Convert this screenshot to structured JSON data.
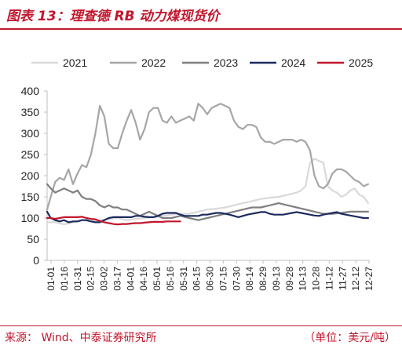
{
  "header": {
    "title": "图表 13：理查德 RB 动力煤现货价"
  },
  "footer": {
    "source": "来源：  Wind、中泰证券研究所",
    "unit": "（单位：美元/吨）"
  },
  "colors": {
    "accent": "#c0172d"
  },
  "chart_data": {
    "type": "line",
    "title": "",
    "xlabel": "",
    "ylabel": "",
    "ylim": [
      0,
      400
    ],
    "yticks": [
      0,
      50,
      100,
      150,
      200,
      250,
      300,
      350,
      400
    ],
    "grid": false,
    "legend_position": "top",
    "x_ticks": [
      "01-01",
      "01-16",
      "01-31",
      "02-15",
      "03-02",
      "03-17",
      "04-01",
      "04-16",
      "05-01",
      "05-16",
      "05-31",
      "06-15",
      "06-30",
      "07-15",
      "07-30",
      "08-14",
      "08-29",
      "09-13",
      "09-28",
      "10-13",
      "10-28",
      "11-12",
      "11-27",
      "12-12",
      "12-27"
    ],
    "series": [
      {
        "name": "2021",
        "color": "#d9d9d9",
        "x": [
          1,
          10,
          20,
          31,
          40,
          50,
          60,
          70,
          80,
          90,
          100,
          110,
          120,
          130,
          140,
          150,
          160,
          170,
          180,
          190,
          200,
          210,
          220,
          230,
          240,
          250,
          260,
          270,
          280,
          285,
          290,
          295,
          300,
          305,
          310,
          315,
          320,
          325,
          330,
          335,
          340,
          345,
          350,
          355,
          360
        ],
        "y": [
          90,
          90,
          85,
          90,
          95,
          92,
          95,
          98,
          100,
          95,
          98,
          100,
          102,
          105,
          108,
          110,
          110,
          115,
          120,
          122,
          125,
          130,
          135,
          140,
          145,
          148,
          150,
          155,
          160,
          165,
          175,
          230,
          240,
          235,
          230,
          175,
          165,
          160,
          150,
          155,
          165,
          170,
          155,
          150,
          135
        ]
      },
      {
        "name": "2022",
        "color": "#a6a6a6",
        "x": [
          1,
          5,
          10,
          15,
          20,
          25,
          30,
          35,
          40,
          45,
          50,
          55,
          60,
          65,
          70,
          75,
          80,
          85,
          90,
          95,
          100,
          105,
          110,
          115,
          120,
          125,
          130,
          135,
          140,
          145,
          150,
          155,
          160,
          165,
          170,
          175,
          180,
          185,
          190,
          195,
          200,
          205,
          210,
          215,
          220,
          225,
          230,
          235,
          240,
          245,
          250,
          255,
          260,
          265,
          270,
          275,
          280,
          285,
          290,
          295,
          300,
          305,
          310,
          315,
          320,
          325,
          330,
          335,
          340,
          345,
          350,
          355,
          360
        ],
        "y": [
          120,
          150,
          185,
          195,
          190,
          215,
          180,
          205,
          225,
          220,
          250,
          300,
          365,
          340,
          275,
          265,
          265,
          300,
          330,
          355,
          325,
          285,
          310,
          350,
          360,
          360,
          330,
          325,
          340,
          325,
          330,
          335,
          340,
          330,
          370,
          360,
          345,
          360,
          365,
          370,
          365,
          360,
          330,
          315,
          310,
          320,
          320,
          315,
          290,
          280,
          280,
          275,
          280,
          285,
          285,
          285,
          280,
          285,
          280,
          260,
          200,
          175,
          170,
          180,
          205,
          215,
          215,
          210,
          200,
          190,
          185,
          175,
          180
        ]
      },
      {
        "name": "2023",
        "color": "#7f7f7f",
        "x": [
          1,
          5,
          10,
          15,
          20,
          25,
          30,
          35,
          40,
          45,
          50,
          55,
          60,
          65,
          70,
          75,
          80,
          85,
          90,
          95,
          100,
          105,
          110,
          115,
          120,
          125,
          130,
          140,
          150,
          160,
          170,
          180,
          190,
          200,
          210,
          220,
          230,
          240,
          250,
          260,
          270,
          280,
          290,
          300,
          310,
          320,
          330,
          340,
          350,
          360
        ],
        "y": [
          180,
          170,
          160,
          165,
          170,
          165,
          160,
          165,
          150,
          145,
          145,
          140,
          130,
          125,
          130,
          125,
          125,
          120,
          120,
          115,
          110,
          105,
          110,
          115,
          110,
          105,
          100,
          100,
          105,
          100,
          95,
          100,
          105,
          110,
          115,
          120,
          125,
          125,
          130,
          135,
          130,
          125,
          120,
          115,
          110,
          110,
          112,
          115,
          115,
          115
        ]
      },
      {
        "name": "2024",
        "color": "#1c2a5e",
        "x": [
          1,
          5,
          10,
          15,
          20,
          25,
          30,
          35,
          40,
          45,
          50,
          55,
          60,
          65,
          70,
          75,
          80,
          85,
          90,
          95,
          100,
          105,
          110,
          115,
          120,
          125,
          130,
          135,
          140,
          145,
          150,
          155,
          160,
          165,
          170,
          175,
          180,
          185,
          190,
          195,
          200,
          205,
          210,
          215,
          220,
          225,
          230,
          235,
          240,
          245,
          250,
          255,
          260,
          265,
          270,
          275,
          280,
          285,
          290,
          295,
          300,
          305,
          310,
          315,
          320,
          325,
          330,
          335,
          340,
          345,
          350,
          355,
          360
        ],
        "y": [
          115,
          100,
          95,
          92,
          95,
          90,
          92,
          92,
          95,
          95,
          92,
          90,
          90,
          95,
          100,
          102,
          102,
          102,
          102,
          102,
          105,
          105,
          103,
          102,
          102,
          105,
          110,
          112,
          112,
          112,
          108,
          105,
          105,
          105,
          105,
          108,
          108,
          110,
          112,
          112,
          110,
          108,
          105,
          102,
          105,
          108,
          110,
          112,
          114,
          114,
          110,
          108,
          108,
          108,
          110,
          112,
          114,
          112,
          110,
          108,
          106,
          105,
          108,
          110,
          112,
          114,
          110,
          108,
          106,
          104,
          102,
          100,
          100
        ]
      },
      {
        "name": "2025",
        "color": "#c0172d",
        "x": [
          1,
          5,
          10,
          15,
          20,
          25,
          30,
          35,
          40,
          45,
          50,
          55,
          60,
          65,
          70,
          75,
          80,
          85,
          90,
          95,
          100,
          105,
          110,
          115,
          120,
          125,
          130,
          135,
          140,
          145,
          150
        ],
        "y": [
          100,
          100,
          98,
          100,
          102,
          102,
          102,
          102,
          103,
          100,
          98,
          97,
          93,
          90,
          88,
          86,
          85,
          86,
          86,
          87,
          88,
          88,
          89,
          90,
          91,
          91,
          91,
          92,
          92,
          92,
          92
        ]
      }
    ]
  }
}
